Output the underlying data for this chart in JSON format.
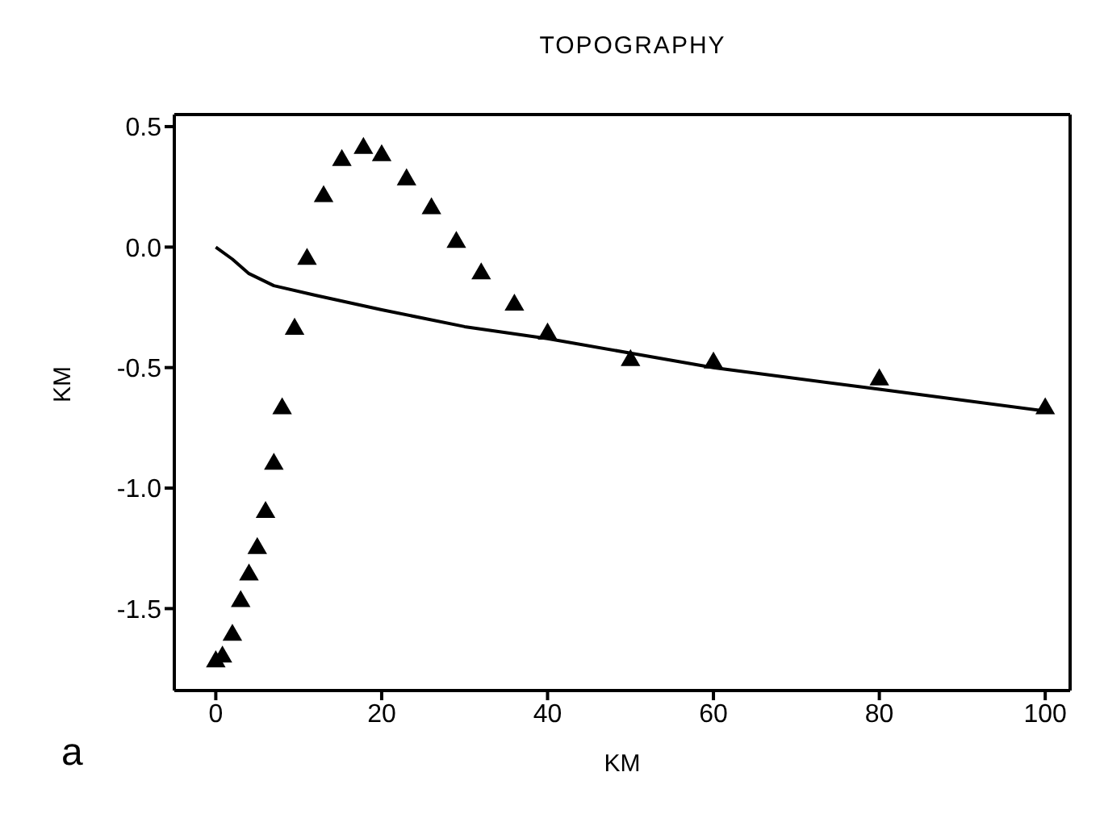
{
  "chart_data": {
    "type": "scatter",
    "title": "TOPOGRAPHY",
    "xlabel": "KM",
    "ylabel": "KM",
    "annotations": [
      "a"
    ],
    "series": [
      {
        "color": "#000000",
        "marker": "triangle",
        "x": [
          0,
          0.8,
          2,
          3,
          4,
          5,
          6,
          7,
          8,
          9.5,
          11,
          13,
          15.2,
          17.8,
          20,
          23,
          26,
          29,
          32,
          36,
          40,
          50,
          60,
          80,
          100
        ],
        "values": [
          -1.72,
          -1.7,
          -1.61,
          -1.47,
          -1.36,
          -1.25,
          -1.1,
          -0.9,
          -0.67,
          -0.34,
          -0.05,
          0.21,
          0.36,
          0.41,
          0.38,
          0.28,
          0.16,
          0.02,
          -0.11,
          -0.24,
          -0.36,
          -0.47,
          -0.48,
          -0.55,
          -0.67
        ]
      },
      {
        "type": "line",
        "color": "#000000",
        "marker": "none",
        "line_style": "solid",
        "x": [
          0,
          2,
          4,
          7,
          12,
          20,
          30,
          40,
          50,
          60,
          80,
          100
        ],
        "values": [
          0,
          -0.05,
          -0.11,
          -0.16,
          -0.2,
          -0.26,
          -0.33,
          -0.38,
          -0.44,
          -0.5,
          -0.59,
          -0.68
        ]
      }
    ],
    "xlim": [
      -5,
      103
    ],
    "xticks": [
      0,
      20,
      40,
      60,
      80,
      100
    ],
    "ylim": [
      -1.84,
      0.55
    ],
    "yticks": [
      {
        "value": -1.5,
        "label": "-1.5"
      },
      {
        "value": -1,
        "label": "-1.0"
      },
      {
        "value": -0.5,
        "label": "-0.5"
      },
      {
        "value": 0,
        "label": "0.0"
      },
      {
        "value": 0.5,
        "label": "0.5"
      }
    ],
    "grid": false
  }
}
